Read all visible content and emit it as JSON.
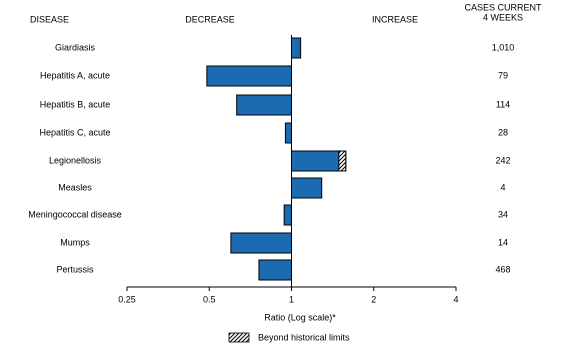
{
  "chart_data": {
    "type": "bar",
    "header_disease": "DISEASE",
    "header_decrease": "DECREASE",
    "header_increase": "INCREASE",
    "header_cases": [
      "CASES CURRENT",
      "4 WEEKS"
    ],
    "categories": [
      "Giardiasis",
      "Hepatitis A, acute",
      "Hepatitis B, acute",
      "Hepatitis C, acute",
      "Legionellosis",
      "Measles",
      "Meningococcal disease",
      "Mumps",
      "Pertussis"
    ],
    "values": [
      1.08,
      0.49,
      0.63,
      0.95,
      1.58,
      1.29,
      0.94,
      0.6,
      0.76
    ],
    "historical_limit": [
      null,
      null,
      null,
      null,
      1.49,
      null,
      null,
      null,
      null
    ],
    "cases": [
      1010,
      79,
      114,
      28,
      242,
      4,
      34,
      14,
      468
    ],
    "cases_labels": [
      "1,010",
      "79",
      "114",
      "28",
      "242",
      "4",
      "34",
      "14",
      "468"
    ],
    "color": "#1a6bb0",
    "log_scale": true,
    "xlim": [
      0.25,
      4
    ],
    "xticks": [
      0.25,
      0.5,
      1,
      2,
      4
    ],
    "xlabel": "Ratio (Log scale)*",
    "legend_label": "Beyond historical limits"
  }
}
